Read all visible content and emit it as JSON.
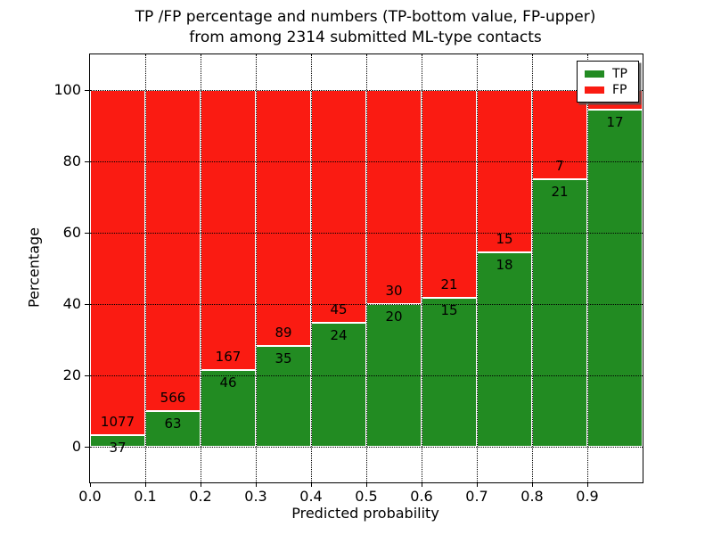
{
  "title": {
    "line1": "TP /FP percentage and numbers (TP-bottom value, FP-upper)",
    "line2": "from among 2314 submitted ML-type contacts"
  },
  "axes": {
    "xlabel": "Predicted probability",
    "ylabel": "Percentage",
    "x_tick_labels": [
      "0.0",
      "0.1",
      "0.2",
      "0.3",
      "0.4",
      "0.5",
      "0.6",
      "0.7",
      "0.8",
      "0.9"
    ],
    "y_tick_labels": [
      "0",
      "20",
      "40",
      "60",
      "80",
      "100"
    ],
    "y_tick_values": [
      0,
      20,
      40,
      60,
      80,
      100
    ]
  },
  "legend": {
    "items": [
      {
        "label": "TP",
        "color": "#228b22"
      },
      {
        "label": "FP",
        "color": "#fa1b12"
      }
    ]
  },
  "colors": {
    "tp": "#228b22",
    "fp": "#fa1b12",
    "bar_edge": "#ffffff",
    "grid": "#000000",
    "text": "#000000"
  },
  "bars": {
    "tp_pct": [
      3.32,
      10.02,
      21.6,
      28.23,
      34.78,
      40.0,
      41.67,
      54.55,
      75.0,
      94.44
    ],
    "fp_labels": [
      "1077",
      "566",
      "167",
      "89",
      "45",
      "30",
      "21",
      "15",
      "7",
      ""
    ],
    "tp_labels": [
      "37",
      "63",
      "46",
      "35",
      "24",
      "20",
      "15",
      "18",
      "21",
      "17"
    ]
  },
  "chart_data": {
    "type": "bar",
    "stacked": true,
    "normalized": "each bar totals 100%",
    "title": "TP /FP percentage and numbers (TP-bottom value, FP-upper) from among 2314 submitted ML-type contacts",
    "xlabel": "Predicted probability",
    "ylabel": "Percentage",
    "bin_edges": [
      0.0,
      0.1,
      0.2,
      0.3,
      0.4,
      0.5,
      0.6,
      0.7,
      0.8,
      0.9,
      1.0
    ],
    "categories": [
      "0.0-0.1",
      "0.1-0.2",
      "0.2-0.3",
      "0.3-0.4",
      "0.4-0.5",
      "0.5-0.6",
      "0.6-0.7",
      "0.7-0.8",
      "0.8-0.9",
      "0.9-1.0"
    ],
    "series": [
      {
        "name": "TP",
        "color": "#228b22",
        "counts": [
          37,
          63,
          46,
          35,
          24,
          20,
          15,
          18,
          21,
          17
        ],
        "percent": [
          3.32,
          10.02,
          21.6,
          28.23,
          34.78,
          40.0,
          41.67,
          54.55,
          75.0,
          94.44
        ]
      },
      {
        "name": "FP",
        "color": "#fa1b12",
        "counts": [
          1077,
          566,
          167,
          89,
          45,
          30,
          21,
          15,
          7,
          1
        ],
        "percent": [
          96.68,
          89.98,
          78.4,
          71.77,
          65.22,
          60.0,
          58.33,
          45.45,
          25.0,
          5.56
        ]
      }
    ],
    "total_contacts": 2314,
    "xlim": [
      0.0,
      1.0
    ],
    "ylim": [
      -10,
      110
    ],
    "grid": "dotted, drawn above bars",
    "legend_position": "upper right"
  }
}
